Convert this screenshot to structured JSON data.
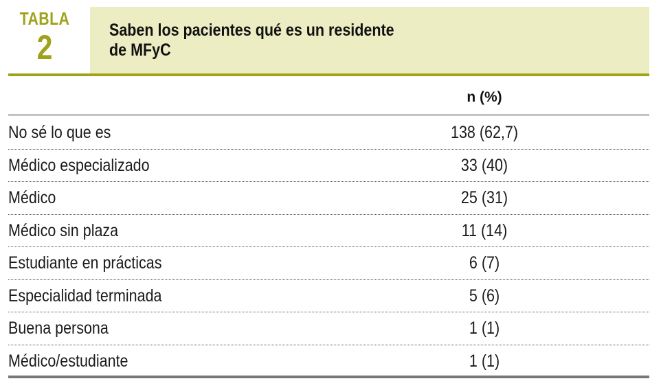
{
  "label": {
    "word": "TABLA",
    "number": "2"
  },
  "title": "Saben los pacientes qué es un residente de MFyC",
  "title_lines": [
    "Saben los pacientes qué es un residente",
    "de MFyC"
  ],
  "column_header": "n (%)",
  "rows": [
    {
      "label": "No sé lo que es",
      "value": "138 (62,7)"
    },
    {
      "label": "Médico especializado",
      "value": "33 (40)"
    },
    {
      "label": "Médico",
      "value": "25 (31)"
    },
    {
      "label": "Médico sin plaza",
      "value": "11 (14)"
    },
    {
      "label": "Estudiante en prácticas",
      "value": "6 (7)"
    },
    {
      "label": "Especialidad terminada",
      "value": "5 (6)"
    },
    {
      "label": "Buena persona",
      "value": "1 (1)"
    },
    {
      "label": "Médico/estudiante",
      "value": "1 (1)"
    }
  ],
  "colors": {
    "accent": "#a0a21a",
    "title_background": "#ededc4",
    "bottom_rule": "#777777"
  }
}
